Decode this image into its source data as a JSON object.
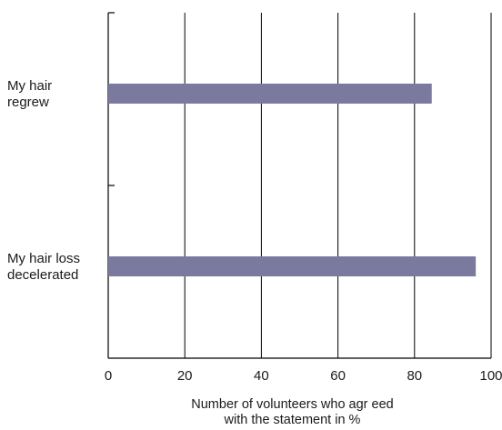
{
  "chart_data": {
    "type": "bar",
    "orientation": "horizontal",
    "categories": [
      [
        "My hair",
        "regrew"
      ],
      [
        "My hair loss",
        "decelerated"
      ]
    ],
    "values": [
      84.5,
      96
    ],
    "xlabel": [
      "Number of volunteers who agr eed",
      "with the statement in  %"
    ],
    "ylabel": "",
    "xlim": [
      0,
      100
    ],
    "xticks": [
      "0",
      "20",
      "40",
      "60",
      "80",
      "100"
    ],
    "grid": "vertical",
    "bar_color": "#7a7a9f",
    "gridline_color": "#000000"
  }
}
